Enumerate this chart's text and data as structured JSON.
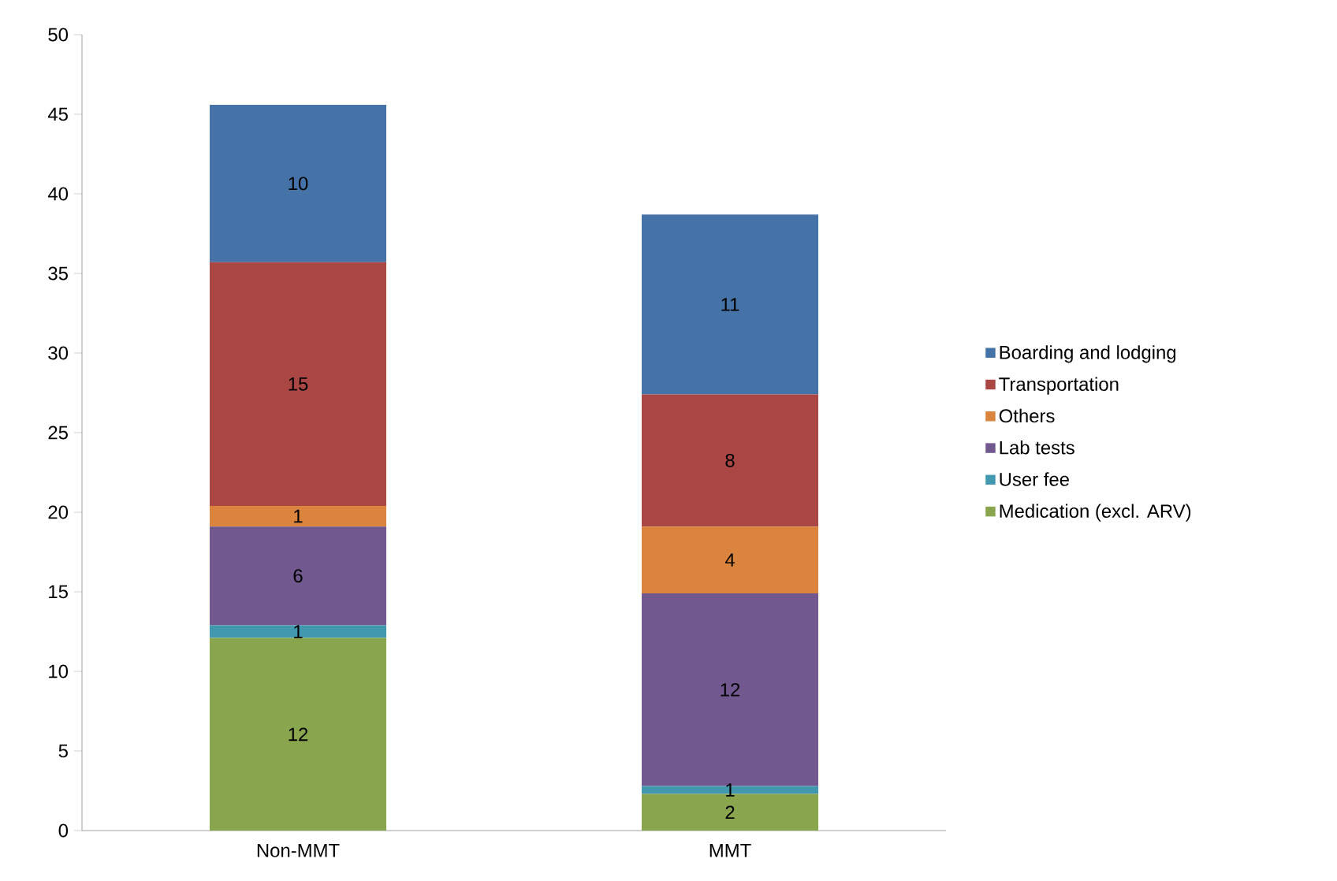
{
  "chart_data": {
    "type": "bar",
    "stacked": true,
    "categories": [
      "Non-MMT",
      "MMT"
    ],
    "ylim": [
      0,
      50
    ],
    "yticks": [
      0,
      5,
      10,
      15,
      20,
      25,
      30,
      35,
      40,
      45,
      50
    ],
    "legend": "right",
    "series": [
      {
        "name": "Medication (excl. ARV)",
        "color": "#89a54e",
        "values": [
          12.1,
          2.3
        ],
        "value_labels": [
          "12",
          "2"
        ]
      },
      {
        "name": "User fee",
        "color": "#4198af",
        "values": [
          0.8,
          0.5
        ],
        "value_labels": [
          "1",
          "1"
        ]
      },
      {
        "name": "Lab tests",
        "color": "#71588f",
        "values": [
          6.2,
          12.1
        ],
        "value_labels": [
          "6",
          "12"
        ]
      },
      {
        "name": "Others",
        "color": "#db843d",
        "values": [
          1.3,
          4.2
        ],
        "value_labels": [
          "1",
          "4"
        ]
      },
      {
        "name": "Transportation",
        "color": "#aa4643",
        "values": [
          15.3,
          8.3
        ],
        "value_labels": [
          "15",
          "8"
        ]
      },
      {
        "name": "Boarding and lodging",
        "color": "#4572a7",
        "values": [
          9.9,
          11.3
        ],
        "value_labels": [
          "10",
          "11"
        ]
      }
    ]
  }
}
